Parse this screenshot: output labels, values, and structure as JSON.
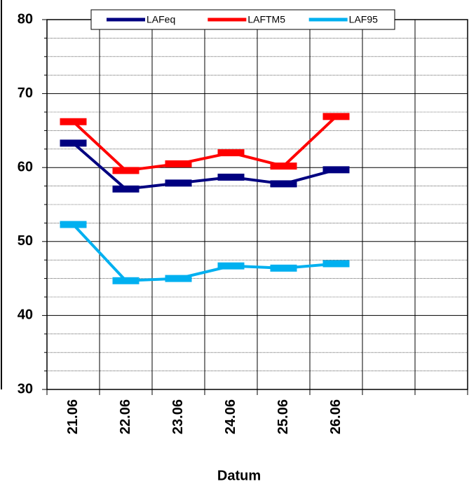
{
  "chart_data": {
    "type": "line",
    "x_label": "Datum",
    "categories": [
      "21.06",
      "22.06",
      "23.06",
      "24.06",
      "25.06",
      "26.06",
      null,
      null
    ],
    "series": [
      {
        "name": "LAFeq",
        "color": "#000080",
        "values": [
          63.3,
          57.1,
          57.9,
          58.7,
          57.8,
          59.7,
          null,
          null
        ]
      },
      {
        "name": "LAFTM5",
        "color": "#ff0000",
        "values": [
          66.2,
          59.6,
          60.5,
          62.0,
          60.2,
          66.9,
          null,
          null
        ]
      },
      {
        "name": "LAF95",
        "color": "#00b0f0",
        "values": [
          52.3,
          44.7,
          45.0,
          46.7,
          46.4,
          47.0,
          null,
          null
        ]
      }
    ],
    "ylim": [
      30,
      80
    ],
    "yticks": [
      30,
      40,
      50,
      60,
      70,
      80
    ],
    "grid": true,
    "legend": "top"
  }
}
